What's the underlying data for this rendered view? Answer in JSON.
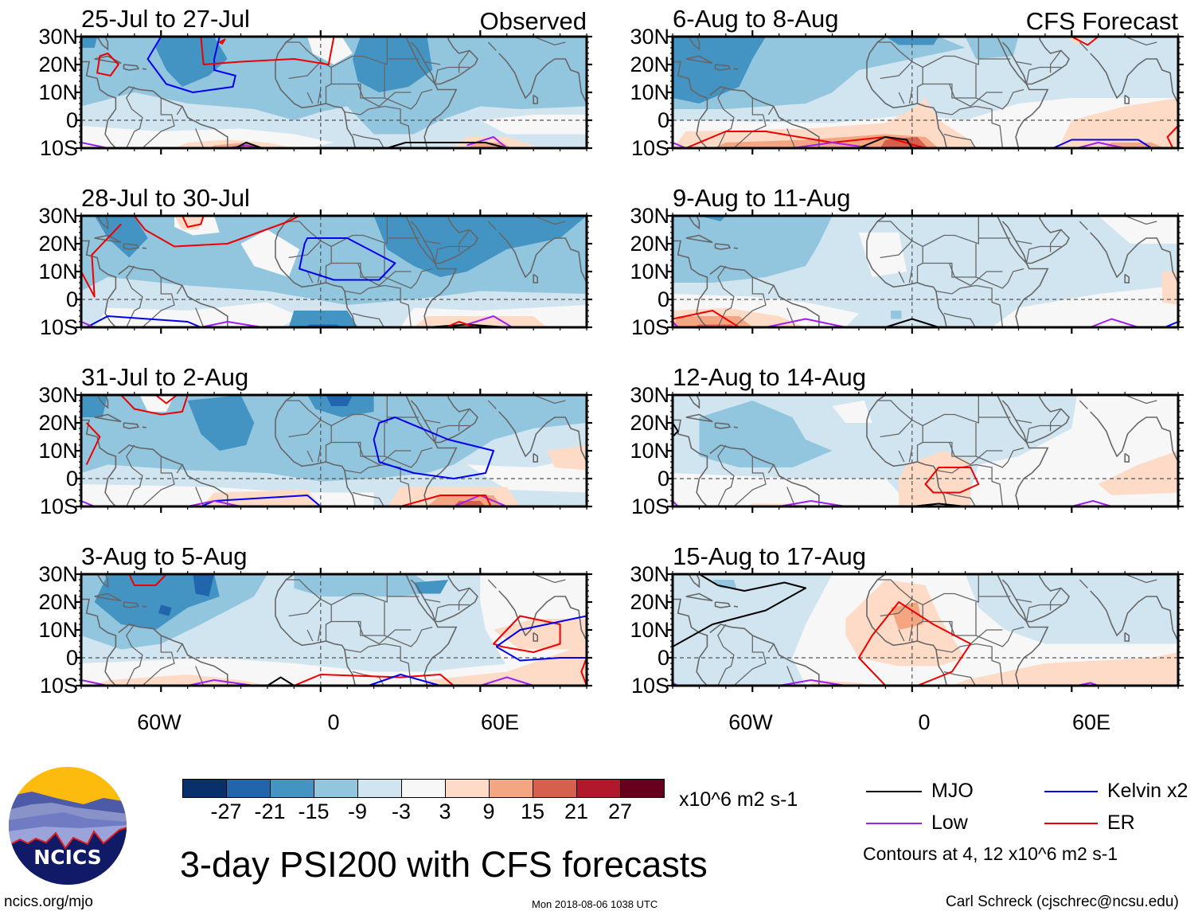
{
  "chart_data": {
    "type": "heatmap",
    "title": "3-day PSI200 with CFS forecasts",
    "variable": "200-hPa streamfunction anomaly (PSI200), 3-day means",
    "units": "x10^6 m2 s-1",
    "xlabel": "",
    "ylabel": "",
    "lon_range": [
      -150,
      100
    ],
    "lon_range_note": "approx. 90W to 100E displayed",
    "lat_range": [
      -10,
      30
    ],
    "x_ticks": [
      "60W",
      "0",
      "60E"
    ],
    "y_ticks": [
      "30N",
      "20N",
      "10N",
      "0",
      "10S"
    ],
    "grid": false,
    "colorbar": {
      "levels": [
        -27,
        -21,
        -15,
        -9,
        -3,
        3,
        9,
        15,
        21,
        27
      ],
      "level_labels": [
        "-27",
        "-21",
        "-15",
        "-9",
        "-3",
        "3",
        "9",
        "15",
        "21",
        "27"
      ],
      "colors": [
        "#08306b",
        "#2166ac",
        "#4393c3",
        "#92c5de",
        "#d1e5f0",
        "#f7f7f7",
        "#fddbc7",
        "#f4a582",
        "#d6604d",
        "#b2182b",
        "#67001f"
      ]
    },
    "legend": {
      "placement": "bottom-right",
      "entries": [
        {
          "name": "MJO",
          "color": "#000000"
        },
        {
          "name": "Kelvin x2",
          "color": "#0000ee"
        },
        {
          "name": "Low",
          "color": "#a020f0"
        },
        {
          "name": "ER",
          "color": "#ee0000"
        }
      ],
      "note": "Contours at 4, 12 x10^6 m2 s-1"
    },
    "panels": [
      {
        "column": "left",
        "period": "25-Jul to 27-Jul",
        "tag": "Observed",
        "dominant_sign": "negative (blue) over N Atlantic, N Africa, Arabia; weak positive near 10S",
        "contours": [
          "Kelvin x2 near 60W-30W 10N-28N",
          "ER near 80W 15N-25N and 45W-5E 18N-30N",
          "MJO and Low along 10S"
        ]
      },
      {
        "column": "left",
        "period": "28-Jul to 30-Jul",
        "tag": "",
        "dominant_sign": "negative (blue) widespread; strongest over Arabia / Red Sea",
        "contours": [
          "Kelvin x2 over West Africa 5N-23N",
          "ER arc over western Atlantic",
          "Kelvin and Low near 10S",
          "MJO/ER near 50E-70E 10S"
        ]
      },
      {
        "column": "left",
        "period": "31-Jul to 2-Aug",
        "tag": "",
        "dominant_sign": "negative over Atlantic and N Africa; positive near 50E-65E 10S",
        "contours": [
          "Kelvin x2 over Horn of Africa 0-18N",
          "ER near 65W 25N-30N",
          "Kelvin/Low/ER along 10S"
        ]
      },
      {
        "column": "left",
        "period": "3-Aug to 5-Aug",
        "tag": "",
        "dominant_sign": "negative over Caribbean/Atlantic; positive over Indian Ocean and S Atlantic",
        "contours": [
          "ER and Kelvin x2 near 70E-90E 0-18N",
          "MJO near 15W 10S",
          "ER and Kelvin along 5S-10S"
        ]
      },
      {
        "column": "right",
        "period": "6-Aug to 8-Aug",
        "tag": "CFS Forecast",
        "dominant_sign": "negative over Caribbean/Atlantic; positive along 0-10S and Indian Ocean",
        "contours": [
          "ER along 5S-10S Atlantic",
          "MJO near 5W 10S",
          "Kelvin x2 and Low near 50E-70E 10S",
          "ER near 55E 30N"
        ]
      },
      {
        "column": "right",
        "period": "9-Aug to 11-Aug",
        "tag": "",
        "dominant_sign": "weak negative over Atlantic/Africa; positive near 80W 10S",
        "contours": [
          "ER near 85W-65W 10S",
          "MJO near 0 10S",
          "Low along 10S"
        ]
      },
      {
        "column": "right",
        "period": "12-Aug to 14-Aug",
        "tag": "",
        "dominant_sign": "weak negative over Caribbean/Atlantic; positive over central Africa near equator",
        "contours": [
          "ER around 5E-20E 5S-8N",
          "MJO near 10E 10S",
          "Low along 10S"
        ]
      },
      {
        "column": "right",
        "period": "15-Aug to 17-Aug",
        "tag": "",
        "dominant_sign": "positive over West Africa; weak negative over Caribbean and Arabia",
        "contours": [
          "MJO over Caribbean 5N-28N",
          "ER over West Africa 10S-22N",
          "Low near 40W 10S"
        ]
      }
    ]
  },
  "panels": [
    {
      "period": "25-Jul to 27-Jul",
      "tag": "Observed"
    },
    {
      "period": "28-Jul to 30-Jul",
      "tag": ""
    },
    {
      "period": "31-Jul to 2-Aug",
      "tag": ""
    },
    {
      "period": "3-Aug to 5-Aug",
      "tag": ""
    },
    {
      "period": "6-Aug to 8-Aug",
      "tag": "CFS Forecast"
    },
    {
      "period": "9-Aug to 11-Aug",
      "tag": ""
    },
    {
      "period": "12-Aug to 14-Aug",
      "tag": ""
    },
    {
      "period": "15-Aug to 17-Aug",
      "tag": ""
    }
  ],
  "axes": {
    "lat_labels": [
      "30N",
      "20N",
      "10N",
      "0",
      "10S"
    ],
    "lon_labels": [
      "60W",
      "0",
      "60E"
    ]
  },
  "colorbar": {
    "labels": [
      "-27",
      "-21",
      "-15",
      "-9",
      "-3",
      "3",
      "9",
      "15",
      "21",
      "27"
    ],
    "units": "x10^6 m2 s-1"
  },
  "legend": {
    "mjo": "MJO",
    "kelvin": "Kelvin x2",
    "low": "Low",
    "er": "ER",
    "note": "Contours at 4, 12 x10^6 m2 s-1"
  },
  "title": "3-day PSI200 with CFS forecasts",
  "logo": {
    "text": "NCICS"
  },
  "footer": {
    "url": "ncics.org/mjo",
    "timestamp": "Mon 2018-08-06 1038 UTC",
    "credit": "Carl Schreck (cjschrec@ncsu.edu)"
  },
  "colors": {
    "mjo": "#000000",
    "kelvin": "#0000ee",
    "low": "#a020f0",
    "er": "#ee0000",
    "coast": "#666666"
  }
}
